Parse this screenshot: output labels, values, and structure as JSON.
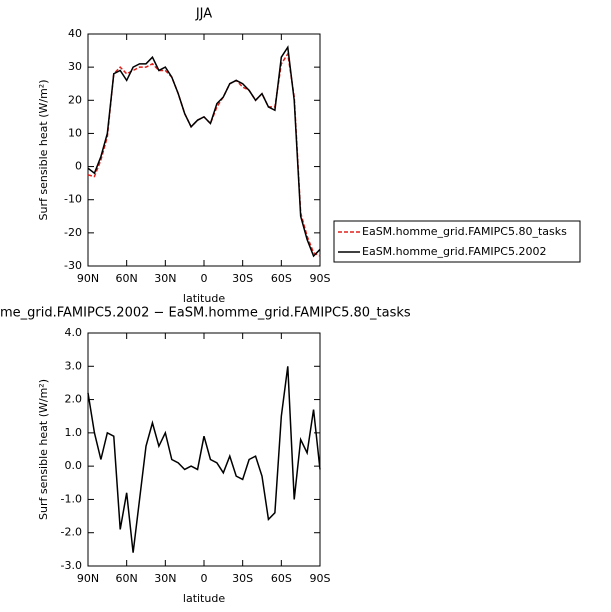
{
  "chart_data": [
    {
      "type": "line",
      "title": "JJA",
      "xlabel": "latitude",
      "ylabel": "Surf sensible heat (W/m²)",
      "x": [
        90,
        85,
        80,
        75,
        70,
        65,
        60,
        55,
        50,
        45,
        40,
        35,
        30,
        25,
        20,
        15,
        10,
        5,
        0,
        -5,
        -10,
        -15,
        -20,
        -25,
        -30,
        -35,
        -40,
        -45,
        -50,
        -55,
        -60,
        -65,
        -70,
        -75,
        -80,
        -85,
        -90
      ],
      "series": [
        {
          "name": "EaSM.homme_grid.FAMIPC5.80_tasks",
          "color": "#e0201b",
          "line_style": "dashed",
          "values": [
            -2.5,
            -3,
            2,
            9,
            28,
            30,
            28,
            29,
            30,
            30,
            31,
            29,
            29,
            27,
            22,
            16,
            12,
            14,
            15,
            13,
            18,
            21,
            25,
            26,
            24,
            23,
            20,
            22,
            18,
            18,
            31,
            34,
            21,
            -14,
            -21,
            -26,
            -27
          ]
        },
        {
          "name": "EaSM.homme_grid.FAMIPC5.2002",
          "color": "#000000",
          "line_style": "solid",
          "values": [
            -0.5,
            -2,
            3,
            10,
            28,
            29,
            26,
            30,
            31,
            31,
            33,
            29,
            30,
            27,
            22,
            16,
            12,
            14,
            15,
            13,
            19,
            21,
            25,
            26,
            25,
            23,
            20,
            22,
            18,
            17,
            33,
            36,
            20,
            -15,
            -22,
            -27,
            -25
          ]
        }
      ],
      "xlim": [
        90,
        -90
      ],
      "xticks": [
        {
          "value": 90,
          "label": "90N"
        },
        {
          "value": 60,
          "label": "60N"
        },
        {
          "value": 30,
          "label": "30N"
        },
        0,
        {
          "value": -30,
          "label": "30S"
        },
        {
          "value": -60,
          "label": "60S"
        },
        {
          "value": -90,
          "label": "90S"
        }
      ],
      "ylim": [
        -30,
        40
      ],
      "yticks": [
        -30,
        -20,
        -10,
        0,
        10,
        20,
        30,
        40
      ],
      "legend": "lower right outside"
    },
    {
      "type": "line",
      "title": "me_grid.FAMIPC5.2002 − EaSM.homme_grid.FAMIPC5.80_tasks",
      "xlabel": "latitude",
      "ylabel": "Surf sensible heat (W/m²)",
      "x": [
        90,
        85,
        80,
        75,
        70,
        65,
        60,
        55,
        50,
        45,
        40,
        35,
        30,
        25,
        20,
        15,
        10,
        5,
        0,
        -5,
        -10,
        -15,
        -20,
        -25,
        -30,
        -35,
        -40,
        -45,
        -50,
        -55,
        -60,
        -65,
        -70,
        -75,
        -80,
        -85,
        -90
      ],
      "series": [
        {
          "name": null,
          "color": "#000000",
          "line_style": "solid",
          "values": [
            2.2,
            1.0,
            0.2,
            1.0,
            0.9,
            -1.9,
            -0.8,
            -2.6,
            -1.0,
            0.6,
            1.3,
            0.6,
            1.0,
            0.2,
            0.1,
            -0.1,
            0.0,
            -0.1,
            0.9,
            0.2,
            0.1,
            -0.2,
            0.3,
            -0.3,
            -0.4,
            0.2,
            0.3,
            -0.3,
            -1.6,
            -1.4,
            1.5,
            3.0,
            -1.0,
            0.8,
            0.4,
            1.7,
            -0.1
          ]
        }
      ],
      "xlim": [
        90,
        -90
      ],
      "xticks": [
        {
          "value": 90,
          "label": "90N"
        },
        {
          "value": 60,
          "label": "60N"
        },
        {
          "value": 30,
          "label": "30N"
        },
        0,
        {
          "value": -30,
          "label": "30S"
        },
        {
          "value": -60,
          "label": "60S"
        },
        {
          "value": -90,
          "label": "90S"
        }
      ],
      "ylim": [
        -3,
        4
      ],
      "yticks": [
        {
          "value": -3,
          "label": "-3.0"
        },
        {
          "value": -2,
          "label": "-2.0"
        },
        {
          "value": -1,
          "label": "-1.0"
        },
        {
          "value": 0,
          "label": "0.0"
        },
        {
          "value": 1,
          "label": "1.0"
        },
        {
          "value": 2,
          "label": "2.0"
        },
        {
          "value": 3,
          "label": "3.0"
        },
        {
          "value": 4,
          "label": "4.0"
        }
      ]
    }
  ]
}
